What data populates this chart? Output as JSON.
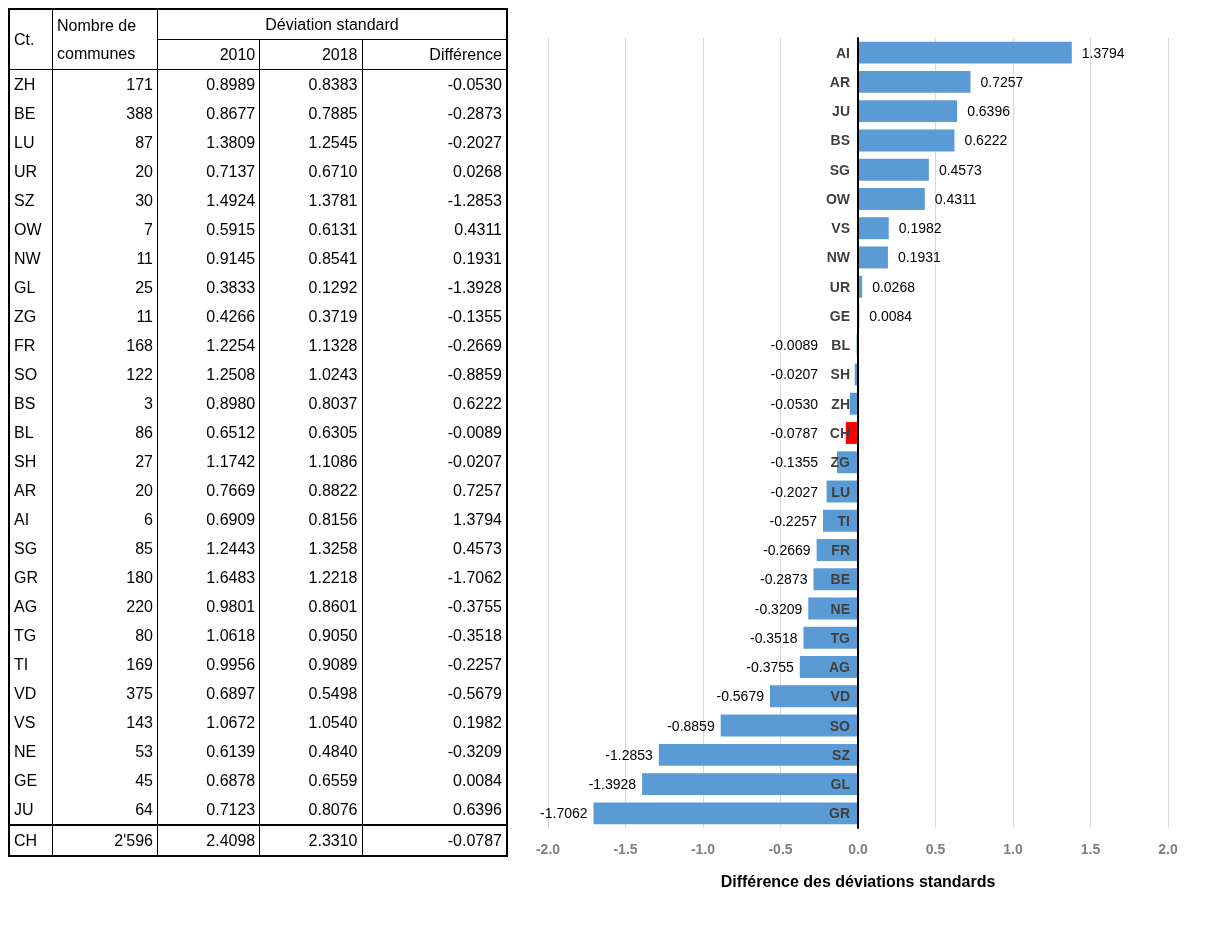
{
  "chart_data": [
    {
      "type": "other",
      "ylabel": "Ct.",
      "annotations": [
        "Déviation standard"
      ],
      "categories": [
        "Nombre de communes",
        "2010",
        "2018",
        "Différence"
      ],
      "y_categories": [
        "ZH",
        "BE",
        "LU",
        "UR",
        "SZ",
        "OW",
        "NW",
        "GL",
        "ZG",
        "FR",
        "SO",
        "BS",
        "BL",
        "SH",
        "AR",
        "AI",
        "SG",
        "GR",
        "AG",
        "TG",
        "TI",
        "VD",
        "VS",
        "NE",
        "GE",
        "JU",
        "CH"
      ],
      "cell_labels": [
        [
          "171",
          "0.8989",
          "0.8383",
          "-0.0530"
        ],
        [
          "388",
          "0.8677",
          "0.7885",
          "-0.2873"
        ],
        [
          "87",
          "1.3809",
          "1.2545",
          "-0.2027"
        ],
        [
          "20",
          "0.7137",
          "0.6710",
          "0.0268"
        ],
        [
          "30",
          "1.4924",
          "1.3781",
          "-1.2853"
        ],
        [
          "7",
          "0.5915",
          "0.6131",
          "0.4311"
        ],
        [
          "11",
          "0.9145",
          "0.8541",
          "0.1931"
        ],
        [
          "25",
          "0.3833",
          "0.1292",
          "-1.3928"
        ],
        [
          "11",
          "0.4266",
          "0.3719",
          "-0.1355"
        ],
        [
          "168",
          "1.2254",
          "1.1328",
          "-0.2669"
        ],
        [
          "122",
          "1.2508",
          "1.0243",
          "-0.8859"
        ],
        [
          "3",
          "0.8980",
          "0.8037",
          "0.6222"
        ],
        [
          "86",
          "0.6512",
          "0.6305",
          "-0.0089"
        ],
        [
          "27",
          "1.1742",
          "1.1086",
          "-0.0207"
        ],
        [
          "20",
          "0.7669",
          "0.8822",
          "0.7257"
        ],
        [
          "6",
          "0.6909",
          "0.8156",
          "1.3794"
        ],
        [
          "85",
          "1.2443",
          "1.3258",
          "0.4573"
        ],
        [
          "180",
          "1.6483",
          "1.2218",
          "-1.7062"
        ],
        [
          "220",
          "0.9801",
          "0.8601",
          "-0.3755"
        ],
        [
          "80",
          "1.0618",
          "0.9050",
          "-0.3518"
        ],
        [
          "169",
          "0.9956",
          "0.9089",
          "-0.2257"
        ],
        [
          "375",
          "0.6897",
          "0.5498",
          "-0.5679"
        ],
        [
          "143",
          "1.0672",
          "1.0540",
          "0.1982"
        ],
        [
          "53",
          "0.6139",
          "0.4840",
          "-0.3209"
        ],
        [
          "45",
          "0.6878",
          "0.6559",
          "0.0084"
        ],
        [
          "64",
          "0.7123",
          "0.8076",
          "0.6396"
        ],
        [
          "2'596",
          "2.4098",
          "2.3310",
          "-0.0787"
        ]
      ]
    },
    {
      "type": "bar",
      "orientation": "horizontal",
      "xlabel": "Différence des déviations standards",
      "categories": [
        "AI",
        "AR",
        "JU",
        "BS",
        "SG",
        "OW",
        "VS",
        "NW",
        "UR",
        "GE",
        "BL",
        "SH",
        "ZH",
        "CH",
        "ZG",
        "LU",
        "TI",
        "FR",
        "BE",
        "NE",
        "TG",
        "AG",
        "VD",
        "SO",
        "SZ",
        "GL",
        "GR"
      ],
      "values": [
        1.3794,
        0.7257,
        0.6396,
        0.6222,
        0.4573,
        0.4311,
        0.1982,
        0.1931,
        0.0268,
        0.0084,
        -0.0089,
        -0.0207,
        -0.053,
        -0.0787,
        -0.1355,
        -0.2027,
        -0.2257,
        -0.2669,
        -0.2873,
        -0.3209,
        -0.3518,
        -0.3755,
        -0.5679,
        -0.8859,
        -1.2853,
        -1.3928,
        -1.7062
      ],
      "value_labels": [
        "1.3794",
        "0.7257",
        "0.6396",
        "0.6222",
        "0.4573",
        "0.4311",
        "0.1982",
        "0.1931",
        "0.0268",
        "0.0084",
        "-0.0089",
        "-0.0207",
        "-0.0530",
        "-0.0787",
        "-0.1355",
        "-0.2027",
        "-0.2257",
        "-0.2669",
        "-0.2873",
        "-0.3209",
        "-0.3518",
        "-0.3755",
        "-0.5679",
        "-0.8859",
        "-1.2853",
        "-1.3928",
        "-1.7062"
      ],
      "colors": [
        "#5b9bd5",
        "#5b9bd5",
        "#5b9bd5",
        "#5b9bd5",
        "#5b9bd5",
        "#5b9bd5",
        "#5b9bd5",
        "#5b9bd5",
        "#5b9bd5",
        "#5b9bd5",
        "#5b9bd5",
        "#5b9bd5",
        "#5b9bd5",
        "#ff0000",
        "#5b9bd5",
        "#5b9bd5",
        "#5b9bd5",
        "#5b9bd5",
        "#5b9bd5",
        "#5b9bd5",
        "#5b9bd5",
        "#5b9bd5",
        "#5b9bd5",
        "#5b9bd5",
        "#5b9bd5",
        "#5b9bd5",
        "#5b9bd5"
      ],
      "xlim": [
        -2,
        2
      ],
      "xticks": [
        {
          "value": -2,
          "label": "-2.0"
        },
        {
          "value": -1.5,
          "label": "-1.5"
        },
        {
          "value": -1,
          "label": "-1.0"
        },
        {
          "value": -0.5,
          "label": "-0.5"
        },
        {
          "value": 0,
          "label": "0.0"
        },
        {
          "value": 0.5,
          "label": "0.5"
        },
        {
          "value": 1,
          "label": "1.0"
        },
        {
          "value": 1.5,
          "label": "1.5"
        },
        {
          "value": 2,
          "label": "2.0"
        }
      ],
      "grid": "x"
    }
  ]
}
